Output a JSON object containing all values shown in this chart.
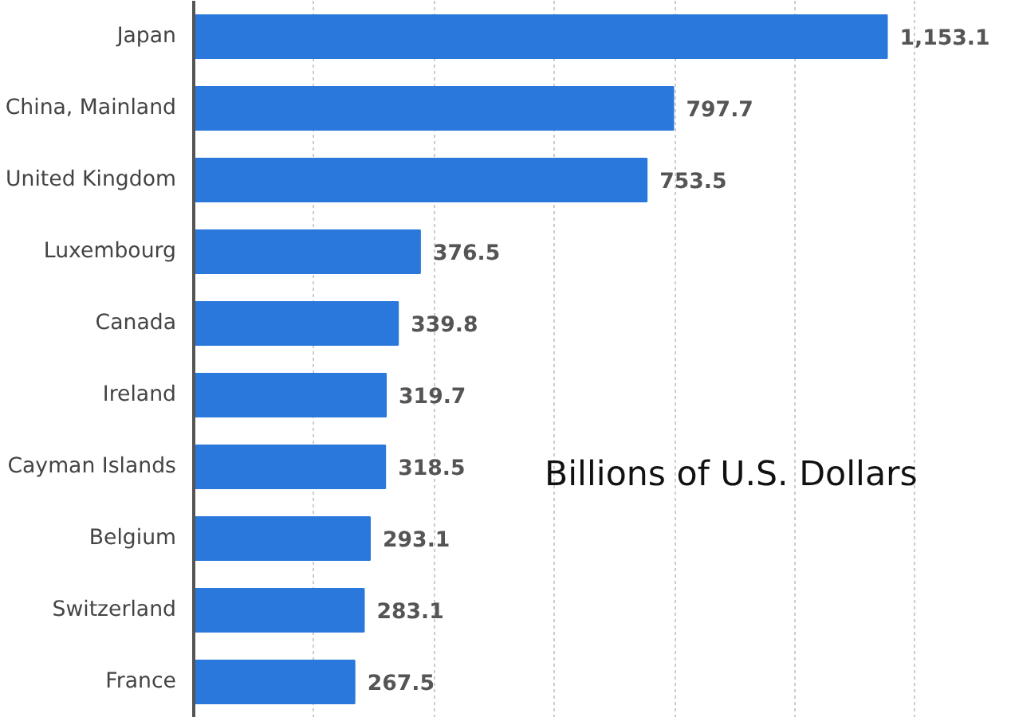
{
  "chart_data": {
    "type": "bar",
    "orientation": "horizontal",
    "categories": [
      "Japan",
      "China, Mainland",
      "United Kingdom",
      "Luxembourg",
      "Canada",
      "Ireland",
      "Cayman Islands",
      "Belgium",
      "Switzerland",
      "France"
    ],
    "values": [
      1153.1,
      797.7,
      753.5,
      376.5,
      339.8,
      319.7,
      318.5,
      293.1,
      283.1,
      267.5
    ],
    "value_labels": [
      "1,153.1",
      "797.7",
      "753.5",
      "376.5",
      "339.8",
      "319.7",
      "318.5",
      "293.1",
      "283.1",
      "267.5"
    ],
    "color": "#2a78dc",
    "xticks": [
      {
        "value": 0,
        "label": null
      },
      {
        "value": 200,
        "label": null
      },
      {
        "value": 400,
        "label": null
      },
      {
        "value": 600,
        "label": null
      },
      {
        "value": 800,
        "label": null
      },
      {
        "value": 1000,
        "label": null
      },
      {
        "value": 1200,
        "label": null
      }
    ],
    "tick_labels": "y",
    "grid": "x",
    "annotations": [
      "Billions of U.S. Dollars"
    ]
  }
}
